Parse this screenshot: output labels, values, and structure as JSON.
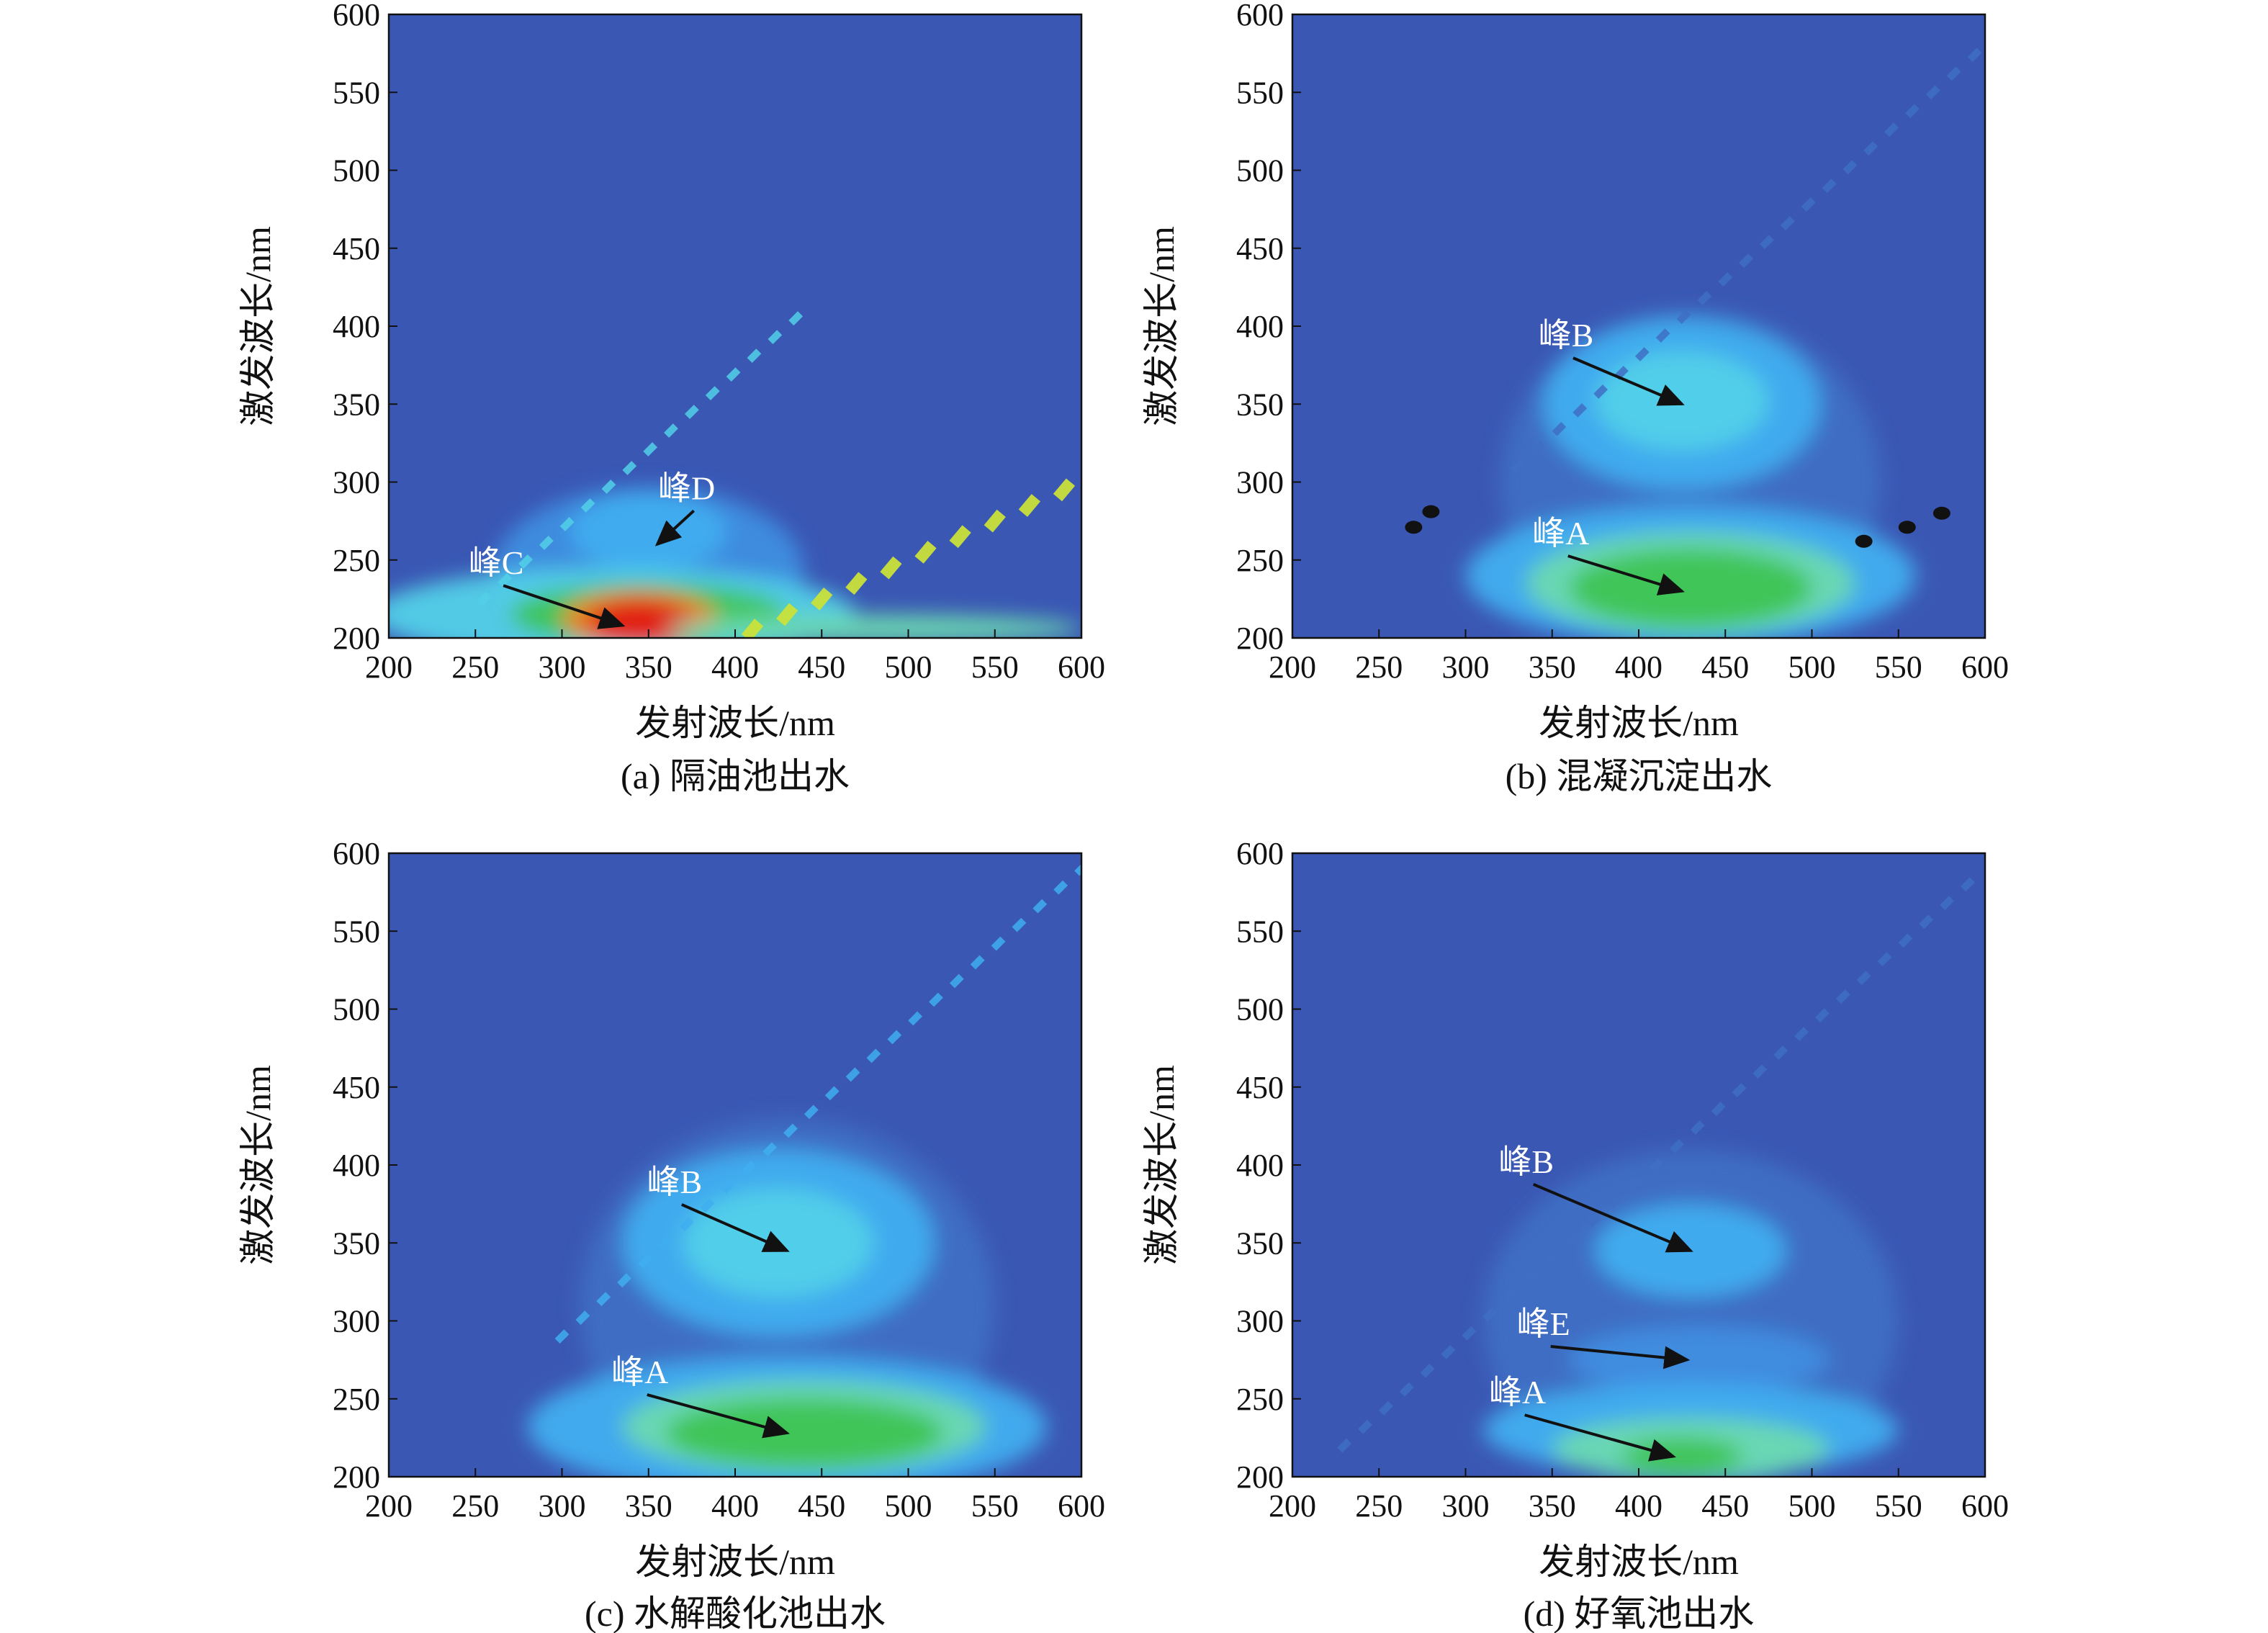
{
  "colors": {
    "background_blue": "#3a57b4",
    "level_1": "#3f6fc4",
    "level_2": "#3f8ee0",
    "level_3": "#40aef0",
    "level_4": "#52d0e8",
    "level_5": "#6bd9b0",
    "level_6": "#3fc454",
    "level_7": "#c9e23a",
    "level_8": "#f08020",
    "level_9": "#e01a18",
    "black_spot": "#111111",
    "arrow": "#111111",
    "peak_label": "#ffffff"
  },
  "chart_data": [
    {
      "type": "heatmap",
      "caption": "(a) 隔油池出水",
      "xlabel": "发射波长/nm",
      "ylabel": "激发波长/nm",
      "xlim": [
        200,
        600
      ],
      "ylim": [
        200,
        600
      ],
      "xticks": [
        "200",
        "250",
        "300",
        "350",
        "400",
        "450",
        "500",
        "550",
        "600"
      ],
      "yticks": [
        "200",
        "250",
        "300",
        "350",
        "400",
        "450",
        "500",
        "550",
        "600"
      ],
      "grid": false,
      "peaks": [
        {
          "label": "峰D",
          "em": 355,
          "ex": 260,
          "label_em": 372,
          "label_ex": 289
        },
        {
          "label": "峰C",
          "em": 335,
          "ex": 208,
          "label_em": 262,
          "label_ex": 241
        }
      ],
      "regions": [
        {
          "em": 350,
          "ex": 242,
          "rem": 90,
          "rex": 55,
          "level": 2
        },
        {
          "em": 350,
          "ex": 268,
          "rem": 45,
          "rex": 25,
          "level": 3
        },
        {
          "em": 330,
          "ex": 215,
          "rem": 140,
          "rex": 30,
          "level": 4
        },
        {
          "em": 350,
          "ex": 215,
          "rem": 80,
          "rex": 20,
          "level": 6
        },
        {
          "em": 345,
          "ex": 212,
          "rem": 45,
          "rex": 18,
          "level": 8
        },
        {
          "em": 345,
          "ex": 210,
          "rem": 30,
          "rex": 15,
          "level": 9
        },
        {
          "em": 480,
          "ex": 206,
          "rem": 120,
          "rex": 9,
          "level": 5
        }
      ],
      "scatter_band": {
        "em_start": 255,
        "em_end": 445,
        "ex_offset": -30,
        "level": 4
      },
      "scatter_band2": {
        "em_start": 410,
        "em_end": 600,
        "ex_slope": 0.5,
        "ex_start": 205,
        "level": 7
      }
    },
    {
      "type": "heatmap",
      "caption": "(b) 混凝沉淀出水",
      "xlabel": "发射波长/nm",
      "ylabel": "激发波长/nm",
      "xlim": [
        200,
        600
      ],
      "ylim": [
        200,
        600
      ],
      "xticks": [
        "200",
        "250",
        "300",
        "350",
        "400",
        "450",
        "500",
        "550",
        "600"
      ],
      "yticks": [
        "200",
        "250",
        "300",
        "350",
        "400",
        "450",
        "500",
        "550",
        "600"
      ],
      "grid": false,
      "peaks": [
        {
          "label": "峰B",
          "em": 425,
          "ex": 350,
          "label_em": 358,
          "label_ex": 387
        },
        {
          "label": "峰A",
          "em": 425,
          "ex": 230,
          "label_em": 355,
          "label_ex": 260
        }
      ],
      "regions": [
        {
          "em": 430,
          "ex": 300,
          "rem": 110,
          "rex": 110,
          "level": 1
        },
        {
          "em": 425,
          "ex": 350,
          "rem": 80,
          "rex": 55,
          "level": 3
        },
        {
          "em": 425,
          "ex": 352,
          "rem": 50,
          "rex": 32,
          "level": 4
        },
        {
          "em": 430,
          "ex": 240,
          "rem": 130,
          "rex": 45,
          "level": 3
        },
        {
          "em": 430,
          "ex": 235,
          "rem": 95,
          "rex": 33,
          "level": 5
        },
        {
          "em": 430,
          "ex": 232,
          "rem": 70,
          "rex": 25,
          "level": 6
        }
      ],
      "black_spots": [
        {
          "em": 280,
          "ex": 281
        },
        {
          "em": 270,
          "ex": 271
        },
        {
          "em": 530,
          "ex": 262
        },
        {
          "em": 555,
          "ex": 271
        },
        {
          "em": 575,
          "ex": 280
        }
      ],
      "scatter_band": {
        "em_start": 330,
        "em_end": 600,
        "ex_offset": -20,
        "level": 1
      }
    },
    {
      "type": "heatmap",
      "caption": "(c) 水解酸化池出水",
      "xlabel": "发射波长/nm",
      "ylabel": "激发波长/nm",
      "xlim": [
        200,
        600
      ],
      "ylim": [
        200,
        600
      ],
      "xticks": [
        "200",
        "250",
        "300",
        "350",
        "400",
        "450",
        "500",
        "550",
        "600"
      ],
      "yticks": [
        "200",
        "250",
        "300",
        "350",
        "400",
        "450",
        "500",
        "550",
        "600"
      ],
      "grid": false,
      "peaks": [
        {
          "label": "峰B",
          "em": 430,
          "ex": 345,
          "label_em": 365,
          "label_ex": 382
        },
        {
          "label": "峰A",
          "em": 430,
          "ex": 228,
          "label_em": 345,
          "label_ex": 260
        }
      ],
      "regions": [
        {
          "em": 430,
          "ex": 310,
          "rem": 120,
          "rex": 120,
          "level": 1
        },
        {
          "em": 425,
          "ex": 350,
          "rem": 90,
          "rex": 60,
          "level": 3
        },
        {
          "em": 425,
          "ex": 350,
          "rem": 55,
          "rex": 35,
          "level": 4
        },
        {
          "em": 430,
          "ex": 232,
          "rem": 150,
          "rex": 45,
          "level": 3
        },
        {
          "em": 440,
          "ex": 232,
          "rem": 105,
          "rex": 30,
          "level": 5
        },
        {
          "em": 440,
          "ex": 228,
          "rem": 80,
          "rex": 22,
          "level": 6
        }
      ],
      "scatter_band": {
        "em_start": 300,
        "em_end": 600,
        "ex_offset": -10,
        "level": 3
      }
    },
    {
      "type": "heatmap",
      "caption": "(d) 好氧池出水",
      "xlabel": "发射波长/nm",
      "ylabel": "激发波长/nm",
      "xlim": [
        200,
        600
      ],
      "ylim": [
        200,
        600
      ],
      "xticks": [
        "200",
        "250",
        "300",
        "350",
        "400",
        "450",
        "500",
        "550",
        "600"
      ],
      "yticks": [
        "200",
        "250",
        "300",
        "350",
        "400",
        "450",
        "500",
        "550",
        "600"
      ],
      "grid": false,
      "peaks": [
        {
          "label": "峰B",
          "em": 430,
          "ex": 345,
          "label_em": 335,
          "label_ex": 395
        },
        {
          "label": "峰E",
          "em": 428,
          "ex": 275,
          "label_em": 345,
          "label_ex": 291
        },
        {
          "label": "峰A",
          "em": 420,
          "ex": 213,
          "label_em": 330,
          "label_ex": 247
        }
      ],
      "regions": [
        {
          "em": 430,
          "ex": 300,
          "rem": 120,
          "rex": 110,
          "level": 1
        },
        {
          "em": 430,
          "ex": 345,
          "rem": 55,
          "rex": 30,
          "level": 3
        },
        {
          "em": 435,
          "ex": 275,
          "rem": 75,
          "rex": 22,
          "level": 2
        },
        {
          "em": 430,
          "ex": 230,
          "rem": 120,
          "rex": 30,
          "level": 3
        },
        {
          "em": 430,
          "ex": 218,
          "rem": 80,
          "rex": 20,
          "level": 5
        },
        {
          "em": 425,
          "ex": 213,
          "rem": 35,
          "rex": 12,
          "level": 6
        }
      ],
      "scatter_band": {
        "em_start": 230,
        "em_end": 600,
        "ex_offset": -10,
        "level": 1
      }
    }
  ]
}
